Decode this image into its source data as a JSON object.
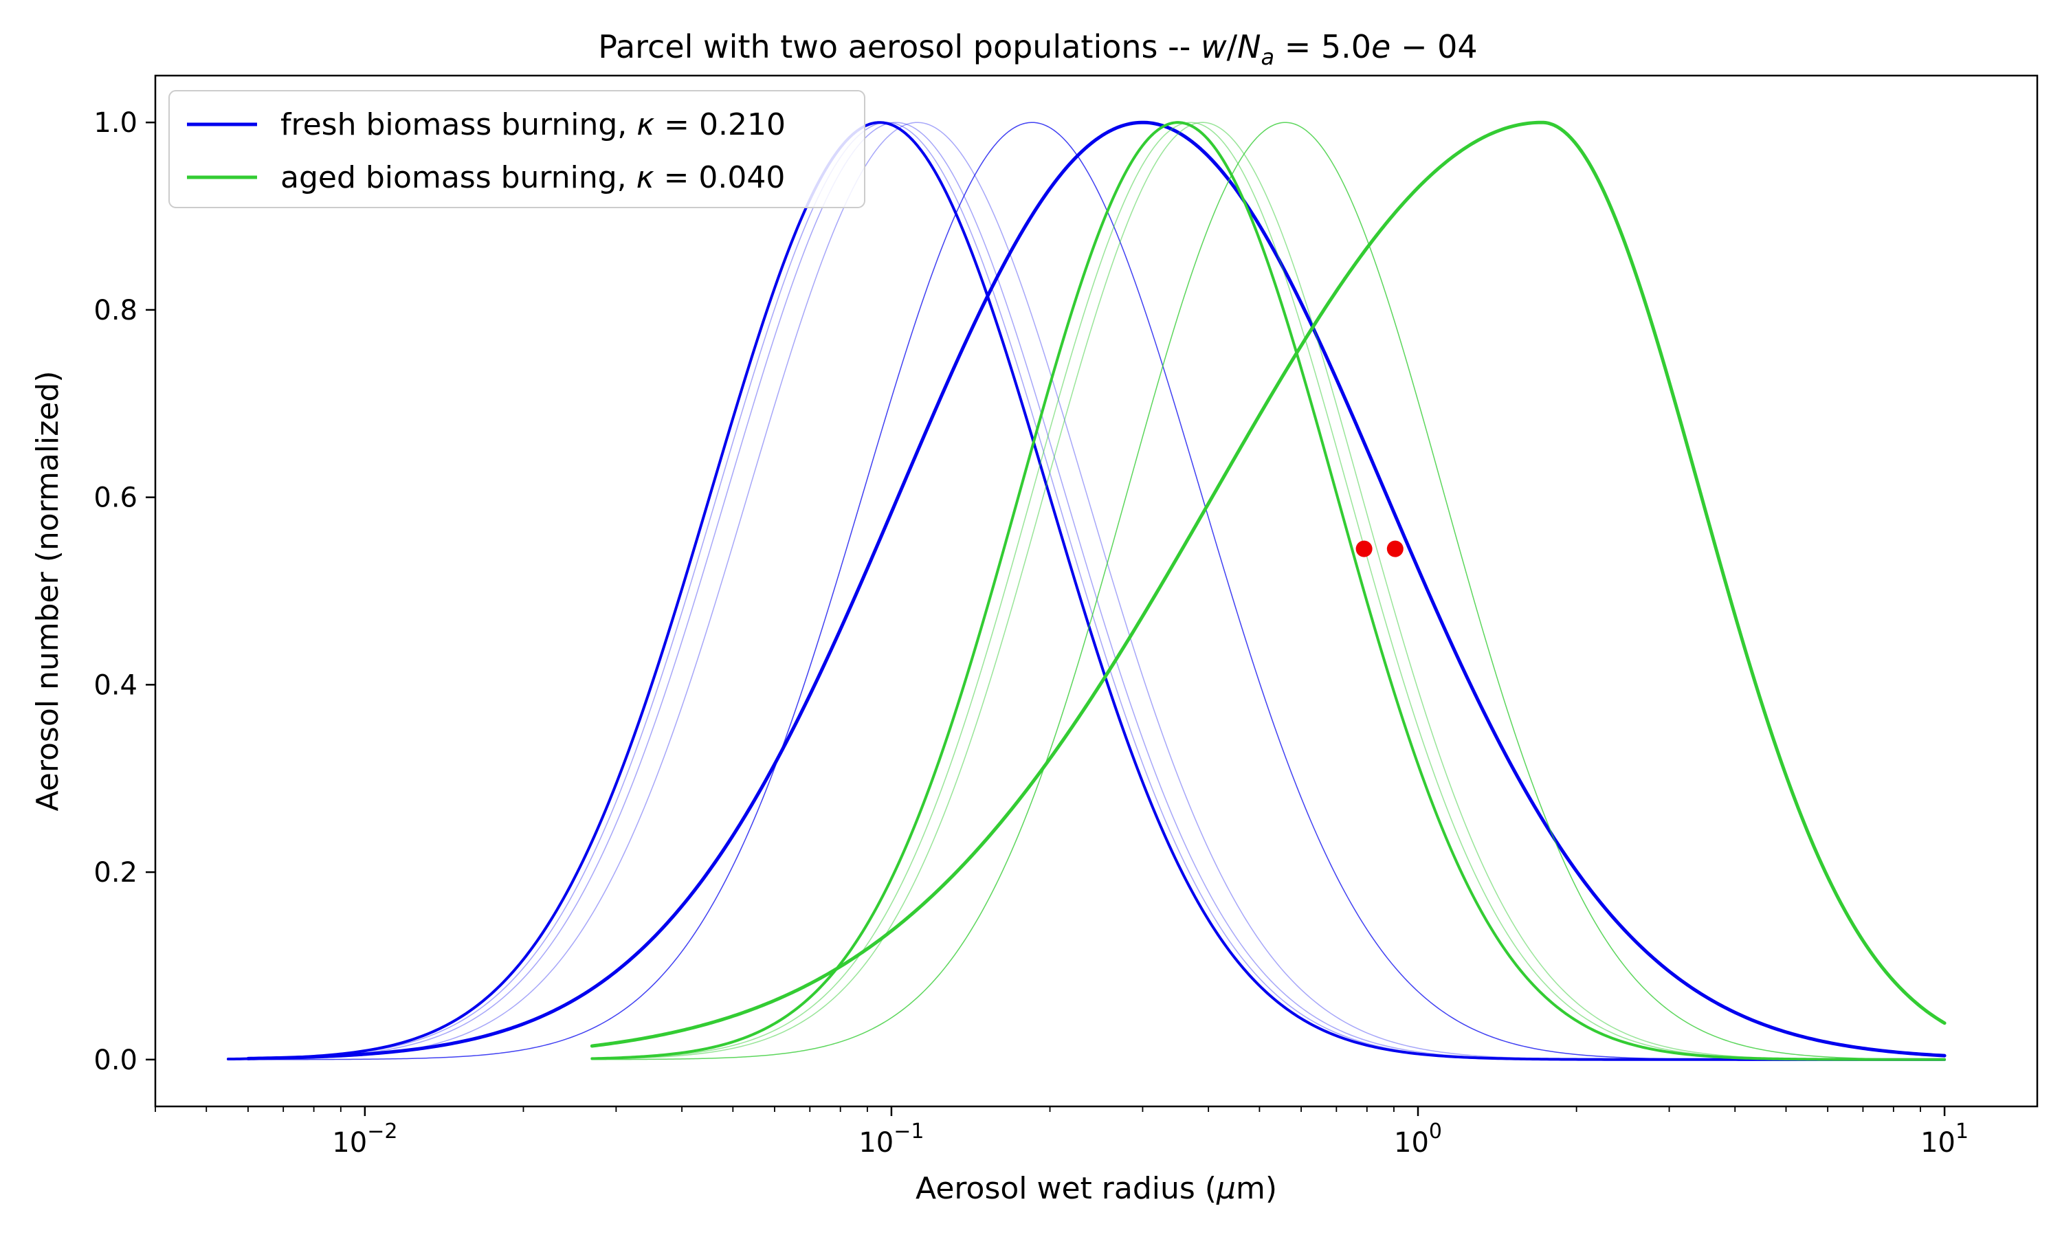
{
  "chart_data": {
    "type": "line",
    "title": "Parcel with two aerosol populations -- w/N_a = 5.0e − 04",
    "title_parts": {
      "prefix": "Parcel with two aerosol populations -- ",
      "w": "w",
      "slash": "/",
      "N": "N",
      "sub": "a",
      "value": " = 5.0",
      "e": "e",
      "suffix": " − 04"
    },
    "xlabel": "Aerosol wet radius (μm)",
    "xlabel_parts": {
      "prefix": "Aerosol wet radius (",
      "mu": "μ",
      "suffix": "m)"
    },
    "ylabel": "Aerosol number (normalized)",
    "x_scale": "log",
    "xlim": [
      0.004,
      15
    ],
    "ylim": [
      -0.05,
      1.05
    ],
    "x_ticks": [
      {
        "value": 0.01,
        "base": "10",
        "exp": "−2"
      },
      {
        "value": 0.1,
        "base": "10",
        "exp": "−1"
      },
      {
        "value": 1,
        "base": "10",
        "exp": "0"
      },
      {
        "value": 10,
        "base": "10",
        "exp": "1"
      }
    ],
    "y_ticks": [
      {
        "value": 0.0,
        "label": "0.0"
      },
      {
        "value": 0.2,
        "label": "0.2"
      },
      {
        "value": 0.4,
        "label": "0.4"
      },
      {
        "value": 0.6,
        "label": "0.6"
      },
      {
        "value": 0.8,
        "label": "0.8"
      },
      {
        "value": 1.0,
        "label": "1.0"
      }
    ],
    "grid": false,
    "legend_position": "top-left",
    "colors": {
      "fresh": "#0000ee",
      "aged": "#33cc33",
      "marker": "#ee0000"
    },
    "legend": [
      {
        "text": "fresh biomass burning, ",
        "kappa": "κ",
        "value": " = 0.210",
        "color": "#0000ee"
      },
      {
        "text": "aged biomass burning, ",
        "kappa": "κ",
        "value": " = 0.040",
        "color": "#33cc33"
      }
    ],
    "series": [
      {
        "name": "fresh biomass burning, κ = 0.210",
        "population": "fresh",
        "mode": 0.095,
        "sigma": 0.32,
        "xmin": 0.0055,
        "xmax": 10,
        "width": 4,
        "opacity": 1.0
      },
      {
        "population": "fresh",
        "mode": 0.098,
        "sigma": 0.32,
        "xmin": 0.006,
        "xmax": 10,
        "width": 1.5,
        "opacity": 0.35
      },
      {
        "population": "fresh",
        "mode": 0.102,
        "sigma": 0.32,
        "xmin": 0.006,
        "xmax": 10,
        "width": 1.5,
        "opacity": 0.35
      },
      {
        "population": "fresh",
        "mode": 0.112,
        "sigma": 0.32,
        "xmin": 0.006,
        "xmax": 10,
        "width": 1.5,
        "opacity": 0.35
      },
      {
        "population": "fresh",
        "mode": 0.185,
        "sigma": 0.32,
        "xmin": 0.006,
        "xmax": 10,
        "width": 1.5,
        "opacity": 0.75
      },
      {
        "population": "fresh",
        "mode": 0.3,
        "sigma": 0.46,
        "xmin": 0.006,
        "xmax": 10,
        "width": 5,
        "opacity": 1.0
      },
      {
        "name": "aged biomass burning, κ = 0.040",
        "population": "aged",
        "mode": 0.35,
        "sigma": 0.3,
        "xmin": 0.027,
        "xmax": 10,
        "width": 4,
        "opacity": 1.0
      },
      {
        "population": "aged",
        "mode": 0.37,
        "sigma": 0.3,
        "xmin": 0.027,
        "xmax": 10,
        "width": 1.5,
        "opacity": 0.5
      },
      {
        "population": "aged",
        "mode": 0.39,
        "sigma": 0.3,
        "xmin": 0.027,
        "xmax": 10,
        "width": 1.5,
        "opacity": 0.5
      },
      {
        "population": "aged",
        "mode": 0.56,
        "sigma": 0.3,
        "xmin": 0.027,
        "xmax": 10,
        "width": 1.5,
        "opacity": 0.8
      },
      {
        "population": "aged",
        "mode": 1.72,
        "sigma": 0.43,
        "xmin": 0.027,
        "xmax": 10,
        "width": 5,
        "opacity": 1.0,
        "left_sigma": 0.62,
        "right_sigma": 0.3
      }
    ],
    "markers": [
      {
        "x": 0.79,
        "y": 0.545
      },
      {
        "x": 0.905,
        "y": 0.545
      }
    ]
  }
}
